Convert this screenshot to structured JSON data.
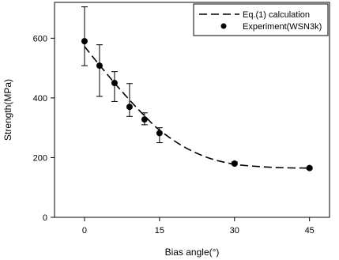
{
  "chart_data": {
    "type": "scatter",
    "xlabel": "Bias angle(°)",
    "ylabel": "Strength(MPa)",
    "xlim": [
      -6,
      49
    ],
    "ylim": [
      0,
      720
    ],
    "xticks": [
      0,
      15,
      30,
      45
    ],
    "xtick_labels": [
      "0",
      "15",
      "30",
      "45"
    ],
    "yticks": [
      0,
      200,
      400,
      600
    ],
    "ytick_labels": [
      "0",
      "200",
      "400",
      "600"
    ],
    "legend_position": "top-right",
    "series": [
      {
        "name": "Eq.(1) calculation",
        "style": "dashed-line",
        "x": [
          0,
          3,
          6,
          9,
          12,
          15,
          20,
          25,
          30,
          35,
          40,
          45
        ],
        "y": [
          572,
          510,
          450,
          393,
          340,
          292,
          235,
          198,
          178,
          170,
          166,
          165
        ]
      },
      {
        "name": "Experiment(WSN3k)",
        "style": "markers-with-errorbars",
        "x": [
          0,
          3,
          6,
          9,
          12,
          15,
          30,
          45
        ],
        "y": [
          590,
          508,
          450,
          370,
          328,
          282,
          180,
          165
        ],
        "err_low": [
          508,
          405,
          388,
          338,
          310,
          250,
          177,
          162
        ],
        "err_high": [
          705,
          578,
          488,
          448,
          350,
          300,
          185,
          169
        ]
      }
    ]
  }
}
